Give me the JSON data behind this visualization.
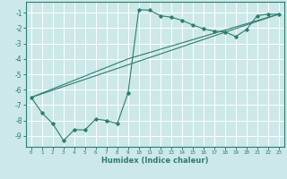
{
  "xlabel": "Humidex (Indice chaleur)",
  "bg_color": "#cce8e8",
  "grid_color": "#ffffff",
  "line_color": "#2d7d6e",
  "xlim": [
    -0.5,
    23.5
  ],
  "ylim": [
    -9.7,
    -0.3
  ],
  "yticks": [
    -9,
    -8,
    -7,
    -6,
    -5,
    -4,
    -3,
    -2,
    -1
  ],
  "xticks": [
    0,
    1,
    2,
    3,
    4,
    5,
    6,
    7,
    8,
    9,
    10,
    11,
    12,
    13,
    14,
    15,
    16,
    17,
    18,
    19,
    20,
    21,
    22,
    23
  ],
  "series1_x": [
    0,
    1,
    2,
    3,
    4,
    5,
    6,
    7,
    8,
    9,
    10,
    11,
    12,
    13,
    14,
    15,
    16,
    17,
    18,
    19,
    20,
    21,
    22,
    23
  ],
  "series1_y": [
    -6.5,
    -7.5,
    -8.2,
    -9.3,
    -8.6,
    -8.6,
    -7.9,
    -8.0,
    -8.2,
    -6.2,
    -0.8,
    -0.85,
    -1.2,
    -1.3,
    -1.5,
    -1.8,
    -2.05,
    -2.2,
    -2.25,
    -2.55,
    -2.1,
    -1.2,
    -1.1,
    -1.1
  ],
  "series2_x": [
    0,
    23
  ],
  "series2_y": [
    -6.5,
    -1.1
  ],
  "series3_x": [
    0,
    9,
    23
  ],
  "series3_y": [
    -6.5,
    -4.0,
    -1.1
  ]
}
